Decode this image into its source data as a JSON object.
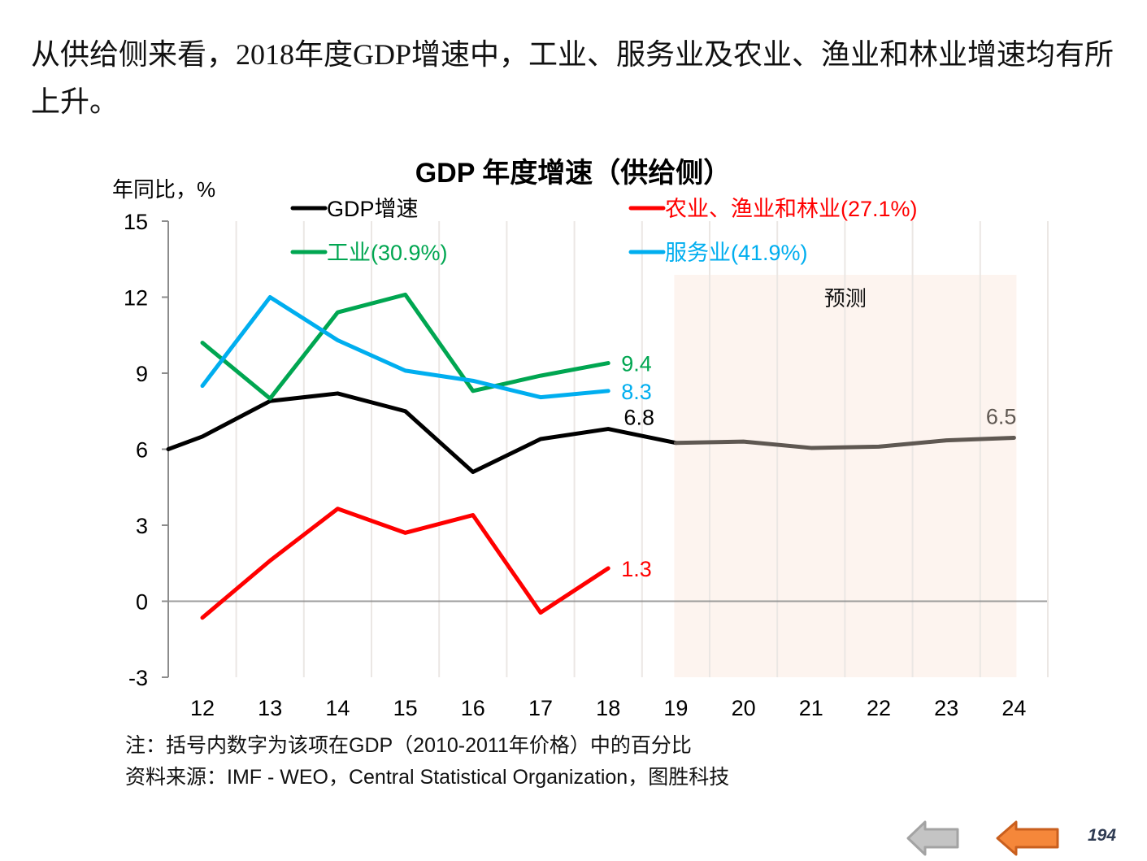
{
  "headline": "从供给侧来看，2018年度GDP增速中，工业、服务业及农业、渔业和林业增速均有所上升。",
  "chart_data": {
    "type": "line",
    "title": "GDP 年度增速（供给侧）",
    "ylabel": "年同比，%",
    "xlabel": "",
    "ylim": [
      -3,
      15
    ],
    "yticks": [
      -3,
      0,
      3,
      6,
      9,
      12,
      15
    ],
    "categories": [
      "12",
      "13",
      "14",
      "15",
      "16",
      "17",
      "18",
      "19",
      "20",
      "21",
      "22",
      "23",
      "24"
    ],
    "grid": "vertical",
    "legend_position": "top",
    "forecast_region": {
      "label": "预测",
      "from": "19",
      "to": "24",
      "color": "#fdf4ef"
    },
    "series": [
      {
        "name": "GDP增速",
        "color": "#000000",
        "forecast_color": "#5f5852",
        "start_value": 6.0,
        "values": [
          6.5,
          7.9,
          8.2,
          7.5,
          5.1,
          6.4,
          6.8,
          6.25,
          6.3,
          6.05,
          6.1,
          6.35,
          6.45
        ],
        "end_labels": [
          {
            "category": "18",
            "text": "6.8"
          },
          {
            "category": "24",
            "text": "6.5"
          }
        ]
      },
      {
        "name": "农业、渔业和林业(27.1%)",
        "color": "#ff0000",
        "values": [
          -0.65,
          1.6,
          3.65,
          2.7,
          3.4,
          -0.45,
          1.3,
          null,
          null,
          null,
          null,
          null,
          null
        ],
        "end_labels": [
          {
            "category": "18",
            "text": "1.3"
          }
        ]
      },
      {
        "name": "工业(30.9%)",
        "color": "#00a651",
        "values": [
          10.2,
          8.0,
          11.4,
          12.1,
          8.3,
          8.9,
          9.4,
          null,
          null,
          null,
          null,
          null,
          null
        ],
        "end_labels": [
          {
            "category": "18",
            "text": "9.4"
          }
        ]
      },
      {
        "name": "服务业(41.9%)",
        "color": "#00aeef",
        "values": [
          8.5,
          12.0,
          10.3,
          9.1,
          8.7,
          8.05,
          8.3,
          null,
          null,
          null,
          null,
          null,
          null
        ],
        "end_labels": [
          {
            "category": "18",
            "text": "8.3"
          }
        ]
      }
    ]
  },
  "notes": {
    "note": "注：括号内数字为该项在GDP（2010-2011年价格）中的百分比",
    "source": "资料来源：IMF - WEO，Central Statistical Organization，图胜科技"
  },
  "nav": {
    "back_icon": "arrow-left-gray",
    "prev_icon": "arrow-left-orange",
    "page_number": "194"
  }
}
